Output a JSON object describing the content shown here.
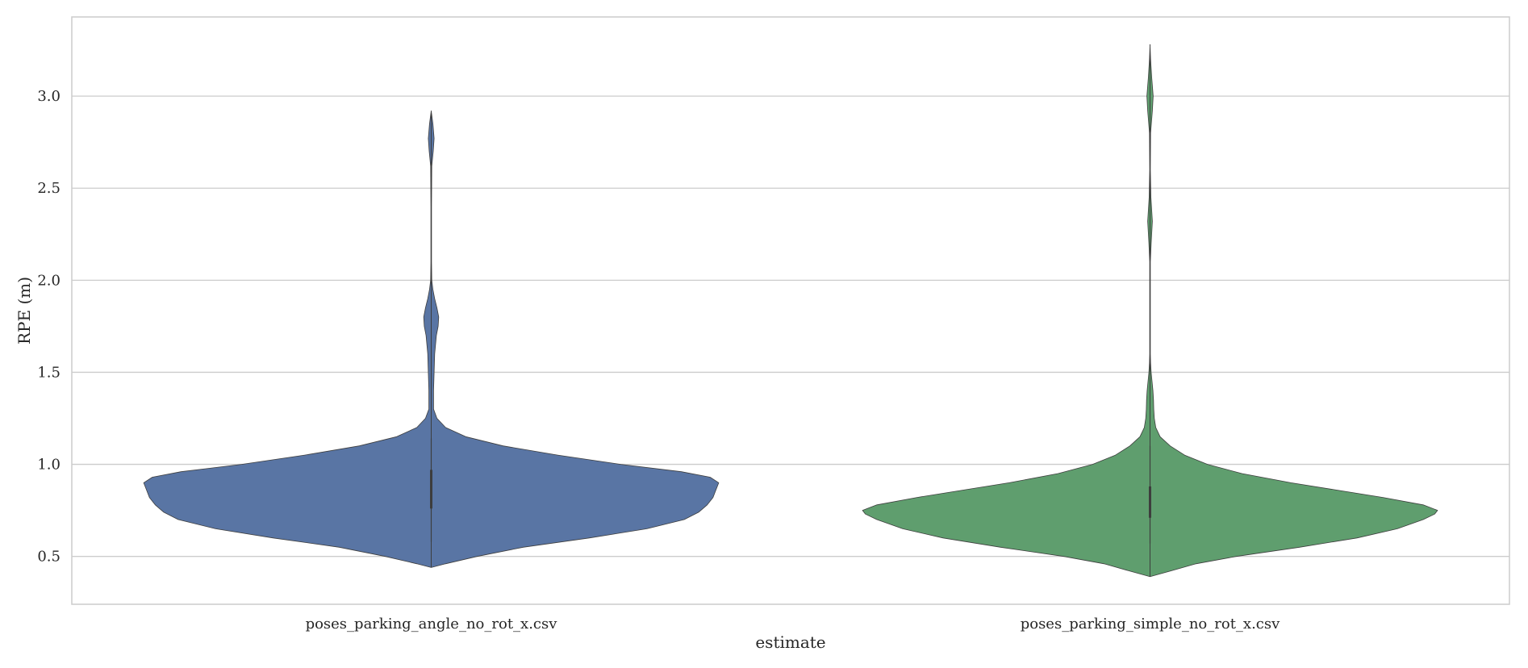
{
  "chart_data": {
    "type": "violin",
    "title": "",
    "xlabel": "estimate",
    "ylabel": "RPE (m)",
    "ylim": [
      0.24,
      3.43
    ],
    "yticks": [
      0.5,
      1.0,
      1.5,
      2.0,
      2.5,
      3.0
    ],
    "ytick_labels": [
      "0.5",
      "1.0",
      "1.5",
      "2.0",
      "2.5",
      "3.0"
    ],
    "grid": "horizontal",
    "categories": [
      "poses_parking_angle_no_rot_x.csv",
      "poses_parking_simple_no_rot_x.csv"
    ],
    "series": [
      {
        "category": "poses_parking_angle_no_rot_x.csv",
        "color": "#5975a4",
        "min": 0.44,
        "max": 2.92,
        "whisker_low": 0.58,
        "whisker_high": 1.14,
        "q1": 0.76,
        "q3": 0.97,
        "density": [
          [
            0.44,
            0.0
          ],
          [
            0.46,
            0.05
          ],
          [
            0.5,
            0.16
          ],
          [
            0.55,
            0.32
          ],
          [
            0.6,
            0.55
          ],
          [
            0.65,
            0.75
          ],
          [
            0.7,
            0.88
          ],
          [
            0.74,
            0.93
          ],
          [
            0.78,
            0.96
          ],
          [
            0.82,
            0.98
          ],
          [
            0.86,
            0.99
          ],
          [
            0.9,
            1.0
          ],
          [
            0.93,
            0.97
          ],
          [
            0.96,
            0.87
          ],
          [
            1.0,
            0.66
          ],
          [
            1.05,
            0.44
          ],
          [
            1.1,
            0.25
          ],
          [
            1.15,
            0.12
          ],
          [
            1.2,
            0.05
          ],
          [
            1.25,
            0.02
          ],
          [
            1.3,
            0.008
          ],
          [
            1.4,
            0.008
          ],
          [
            1.5,
            0.01
          ],
          [
            1.6,
            0.012
          ],
          [
            1.7,
            0.018
          ],
          [
            1.75,
            0.024
          ],
          [
            1.8,
            0.026
          ],
          [
            1.85,
            0.02
          ],
          [
            1.9,
            0.012
          ],
          [
            1.95,
            0.006
          ],
          [
            2.0,
            0.002
          ],
          [
            2.1,
            0.001
          ],
          [
            2.4,
            0.001
          ],
          [
            2.62,
            0.002
          ],
          [
            2.7,
            0.007
          ],
          [
            2.77,
            0.01
          ],
          [
            2.85,
            0.006
          ],
          [
            2.92,
            0.0
          ]
        ]
      },
      {
        "category": "poses_parking_simple_no_rot_x.csv",
        "color": "#5f9e6e",
        "min": 0.39,
        "max": 3.28,
        "whisker_low": 0.57,
        "whisker_high": 1.1,
        "q1": 0.71,
        "q3": 0.88,
        "density": [
          [
            0.39,
            0.0
          ],
          [
            0.42,
            0.07
          ],
          [
            0.46,
            0.16
          ],
          [
            0.5,
            0.3
          ],
          [
            0.55,
            0.52
          ],
          [
            0.6,
            0.72
          ],
          [
            0.65,
            0.86
          ],
          [
            0.7,
            0.95
          ],
          [
            0.73,
            0.99
          ],
          [
            0.75,
            1.0
          ],
          [
            0.78,
            0.95
          ],
          [
            0.82,
            0.81
          ],
          [
            0.86,
            0.65
          ],
          [
            0.9,
            0.49
          ],
          [
            0.95,
            0.32
          ],
          [
            1.0,
            0.2
          ],
          [
            1.05,
            0.12
          ],
          [
            1.1,
            0.07
          ],
          [
            1.15,
            0.035
          ],
          [
            1.2,
            0.02
          ],
          [
            1.25,
            0.015
          ],
          [
            1.3,
            0.013
          ],
          [
            1.35,
            0.012
          ],
          [
            1.4,
            0.01
          ],
          [
            1.45,
            0.007
          ],
          [
            1.5,
            0.004
          ],
          [
            1.55,
            0.002
          ],
          [
            1.6,
            0.001
          ],
          [
            2.1,
            0.001
          ],
          [
            2.2,
            0.004
          ],
          [
            2.32,
            0.008
          ],
          [
            2.45,
            0.003
          ],
          [
            2.6,
            0.001
          ],
          [
            2.8,
            0.002
          ],
          [
            2.92,
            0.008
          ],
          [
            3.0,
            0.011
          ],
          [
            3.1,
            0.006
          ],
          [
            3.2,
            0.002
          ],
          [
            3.28,
            0.0
          ]
        ]
      }
    ]
  }
}
